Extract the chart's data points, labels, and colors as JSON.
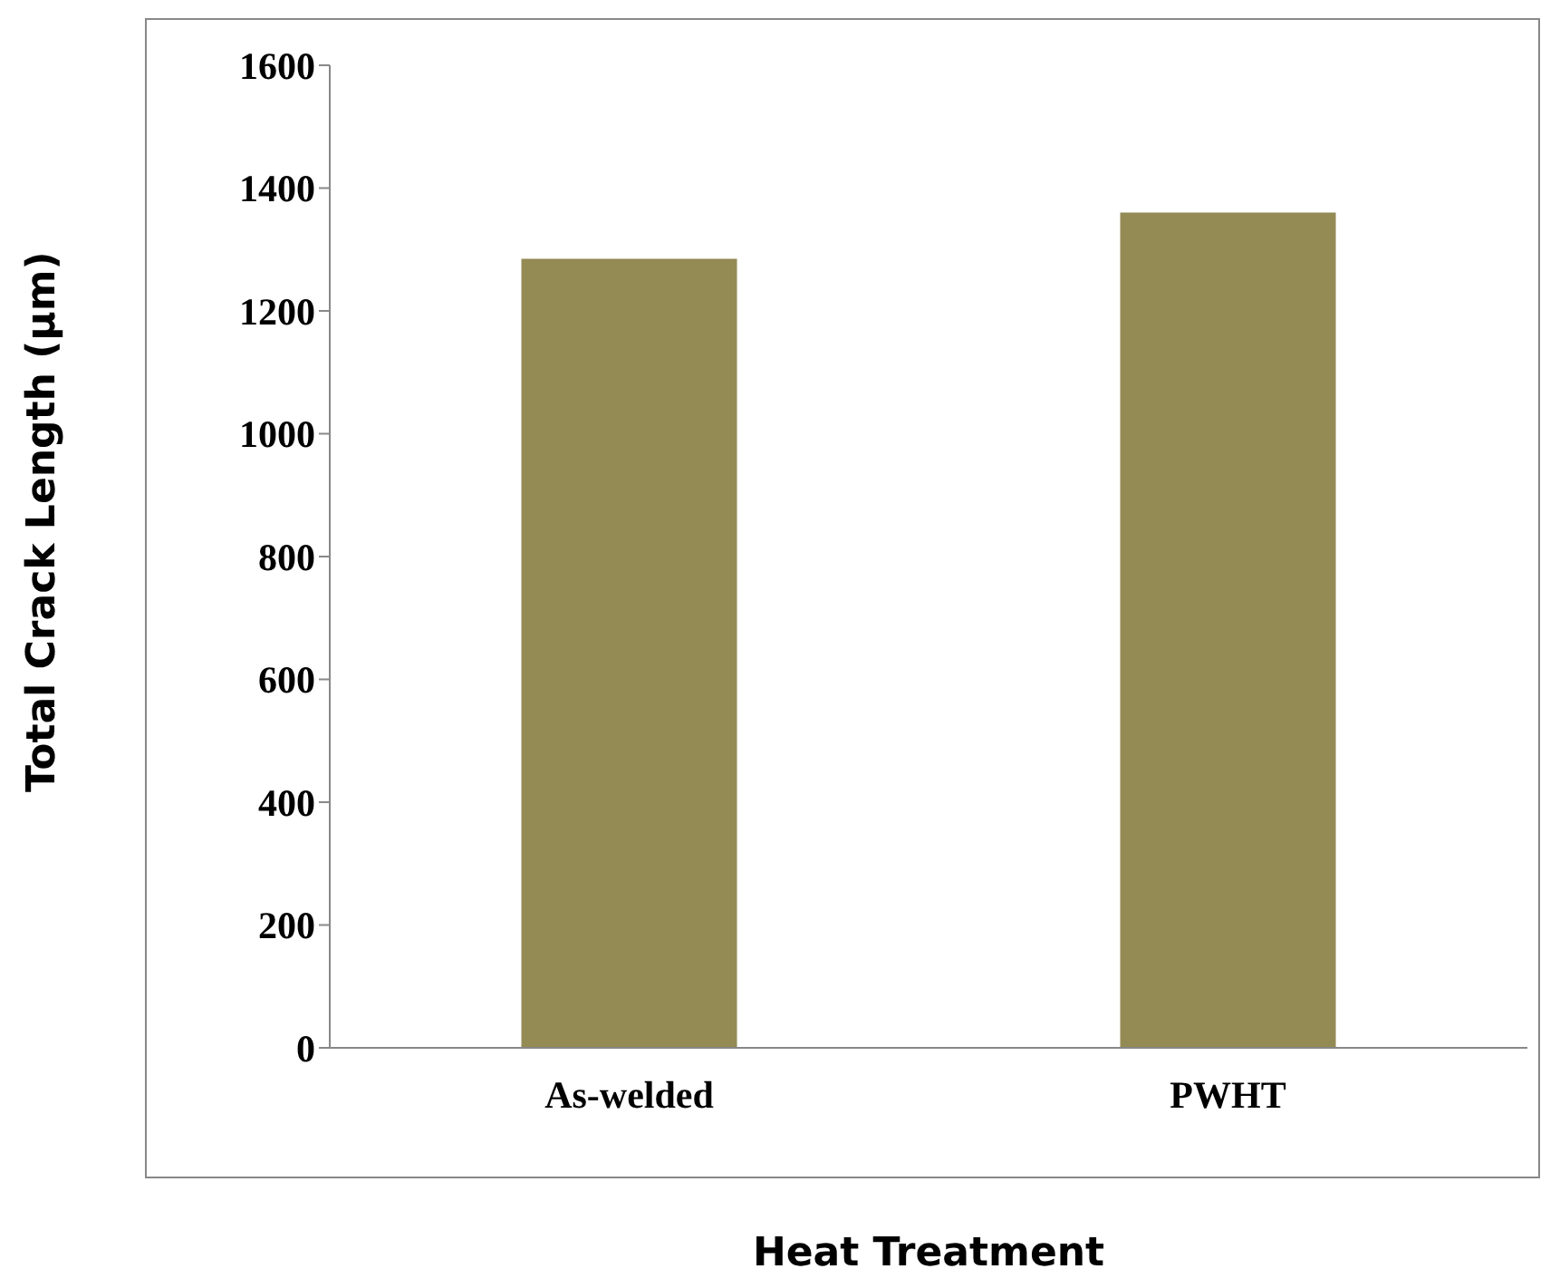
{
  "chart_data": {
    "type": "bar",
    "xlabel": "Heat Treatment",
    "ylabel": "Total Crack Length (µm)",
    "categories": [
      "As-welded",
      "PWHT"
    ],
    "values": [
      1285,
      1360
    ],
    "color": "#948a54",
    "ylim": [
      0,
      1600
    ],
    "yticks": [
      0,
      200,
      400,
      600,
      800,
      1000,
      1200,
      1400,
      1600
    ],
    "grid": false,
    "legend": false
  }
}
